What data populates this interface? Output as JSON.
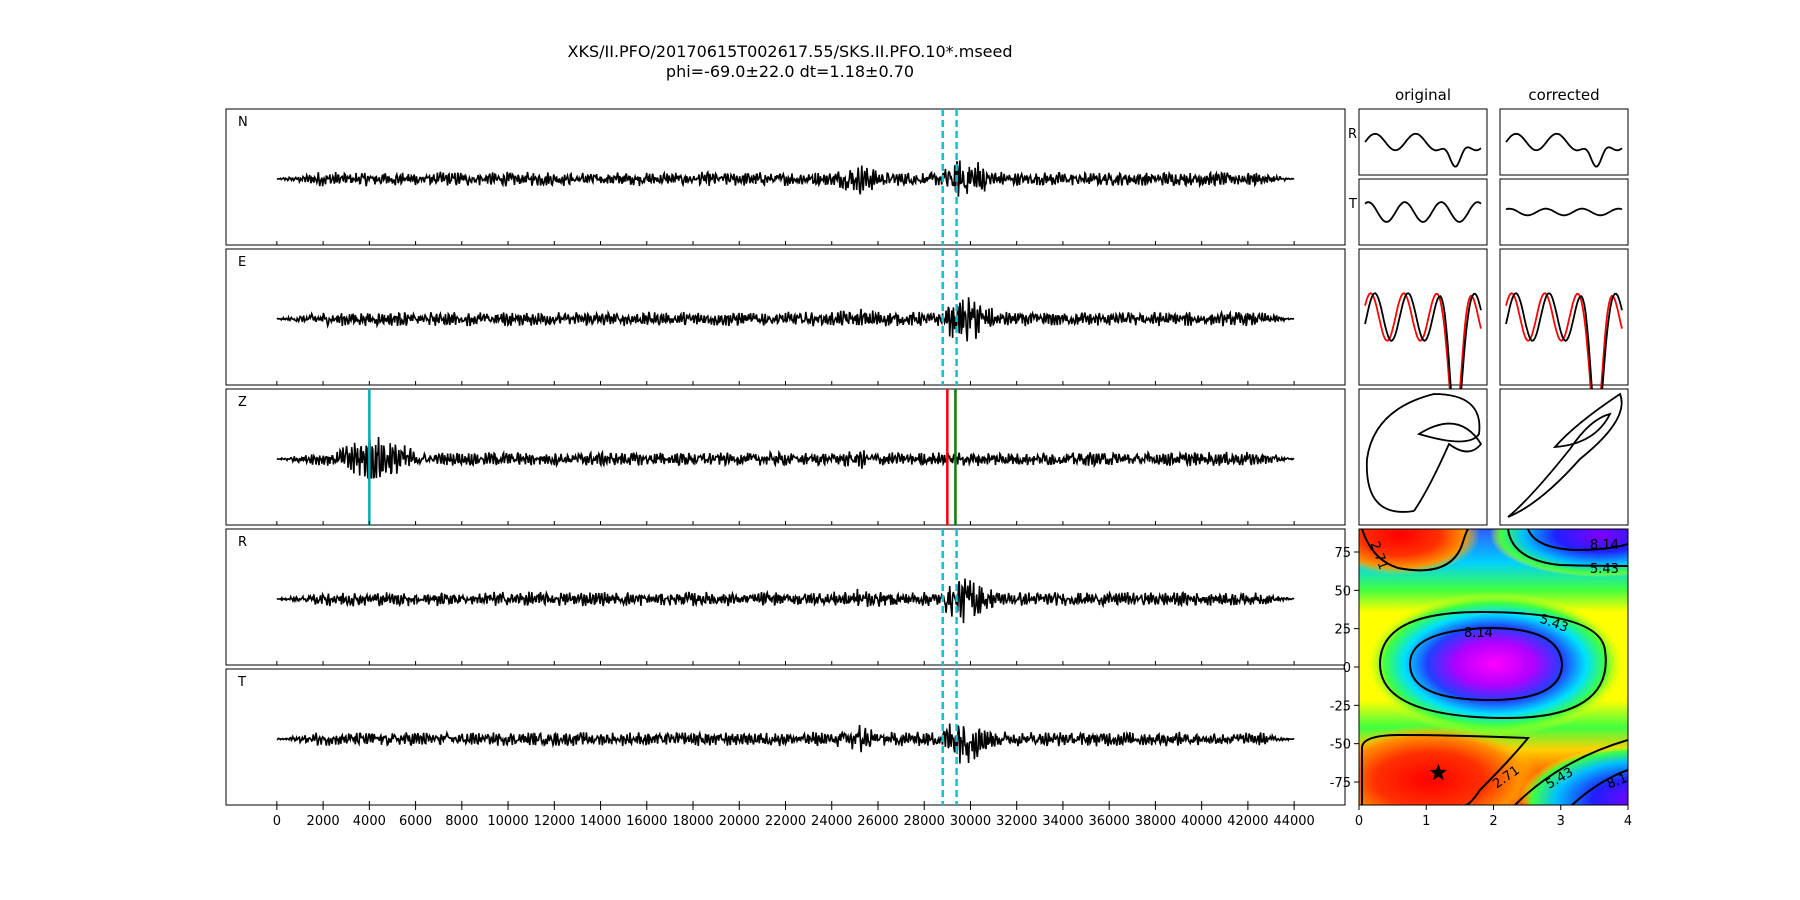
{
  "figure": {
    "title_line1": "XKS/II.PFO/20170615T002617.55/SKS.II.PFO.10*.mseed",
    "title_line2": "phi=-69.0±22.0 dt=1.18±0.70"
  },
  "columns": {
    "original": "original",
    "corrected": "corrected"
  },
  "colors": {
    "trace": "#000000",
    "window_marker": "#17becf",
    "pick_red": "#ff0000",
    "pick_green": "#008000",
    "pick_cyan": "#00b0b0",
    "overlay_red": "#ff0000"
  },
  "chart_data": [
    {
      "type": "line",
      "id": "seismograms",
      "panels": [
        {
          "label": "N",
          "markers": "window"
        },
        {
          "label": "E",
          "markers": "window"
        },
        {
          "label": "Z",
          "markers": "picks"
        },
        {
          "label": "R",
          "markers": "window"
        },
        {
          "label": "T",
          "markers": "window"
        }
      ],
      "x_range": [
        -2200,
        46200
      ],
      "x_data_range": [
        0,
        44000
      ],
      "x_ticks": [
        0,
        2000,
        4000,
        6000,
        8000,
        10000,
        12000,
        14000,
        16000,
        18000,
        20000,
        22000,
        24000,
        26000,
        28000,
        30000,
        32000,
        34000,
        36000,
        38000,
        40000,
        42000,
        44000
      ],
      "window_markers": [
        28800,
        29400
      ],
      "picks": [
        {
          "x": 4000,
          "color": "cyan"
        },
        {
          "x": 29000,
          "color": "red"
        },
        {
          "x": 29350,
          "color": "green"
        }
      ]
    },
    {
      "type": "line",
      "id": "particle_panels",
      "rows": [
        {
          "label": "R"
        },
        {
          "label": "T"
        },
        {
          "label": ""
        },
        {
          "label": ""
        }
      ]
    },
    {
      "type": "heatmap",
      "id": "error_surface",
      "xlim": [
        0,
        4
      ],
      "ylim": [
        -90,
        90
      ],
      "x_ticks": [
        0,
        1,
        2,
        3,
        4
      ],
      "y_ticks": [
        75,
        50,
        25,
        0,
        -25,
        -50,
        -75
      ],
      "contour_labels": [
        "2.71",
        "8.14",
        "5.43",
        "8.14",
        "5.43",
        "2.71",
        "5.43",
        "8.1"
      ],
      "best": {
        "dt": 1.18,
        "phi": -69.0
      }
    }
  ]
}
